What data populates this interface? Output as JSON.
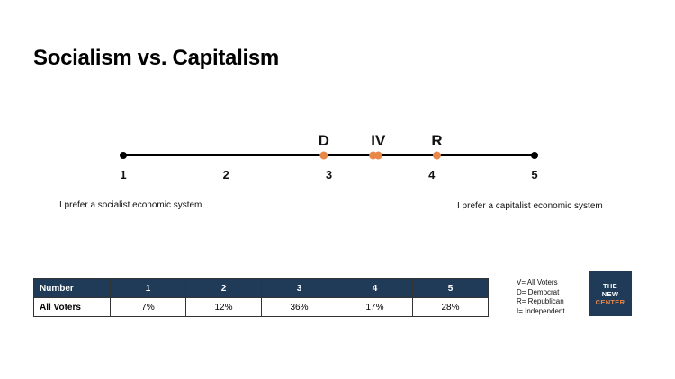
{
  "title": "Socialism vs. Capitalism",
  "scale": {
    "pole_left": "I prefer a socialist economic system",
    "pole_right": "I prefer a capitalist economic system"
  },
  "chart_data": {
    "type": "scale",
    "x_range": [
      1,
      5
    ],
    "ticks": [
      {
        "value": 1,
        "label": "1"
      },
      {
        "value": 2,
        "label": "2"
      },
      {
        "value": 3,
        "label": "3"
      },
      {
        "value": 4,
        "label": "4"
      },
      {
        "value": 5,
        "label": "5"
      }
    ],
    "markers": [
      {
        "label": "D",
        "value": 2.95
      },
      {
        "label": "I",
        "value": 3.43
      },
      {
        "label": "V",
        "value": 3.48
      },
      {
        "label": "R",
        "value": 4.05
      }
    ],
    "marker_labels": [
      {
        "text": "D",
        "value": 2.95
      },
      {
        "text": "IV",
        "value": 3.48
      },
      {
        "text": "R",
        "value": 4.05
      }
    ],
    "marker_color": "#e8874a",
    "line_color": "#000000"
  },
  "table": {
    "header": [
      "Number",
      "1",
      "2",
      "3",
      "4",
      "5"
    ],
    "rows": [
      [
        "All Voters",
        "7%",
        "12%",
        "36%",
        "17%",
        "28%"
      ]
    ],
    "header_color": "#1f3b57"
  },
  "legend": [
    "V= All Voters",
    "D= Democrat",
    "R= Republican",
    "I= Independent"
  ],
  "logo": {
    "line1": "THE",
    "line2": "NEW",
    "line3": "CENTER"
  }
}
